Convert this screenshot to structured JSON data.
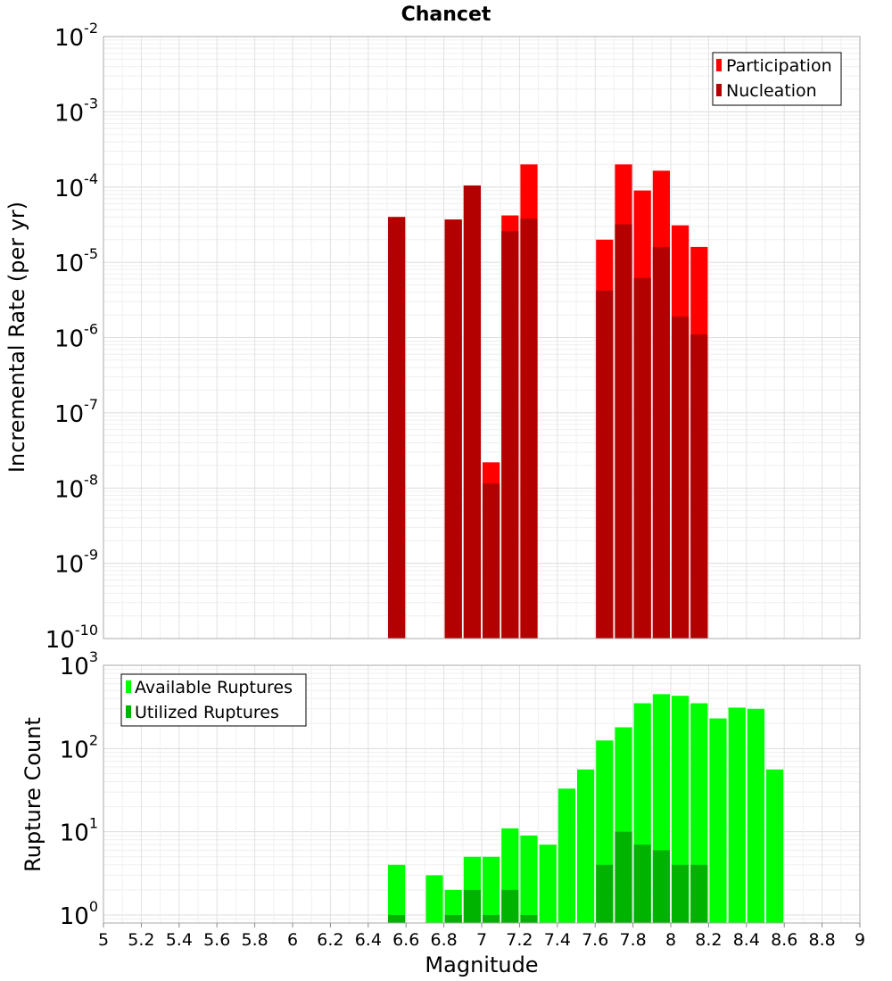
{
  "chart_data": [
    {
      "type": "bar",
      "title": "Chancet",
      "ylabel": "Incremental Rate (per yr)",
      "xlim": [
        5,
        9
      ],
      "ylim": [
        1e-10,
        0.01
      ],
      "yscale": "log",
      "grid": true,
      "legend_position": "top-right",
      "bin_width": 0.1,
      "y_tick_exponents": [
        "-10",
        "-9",
        "-8",
        "-7",
        "-6",
        "-5",
        "-4",
        "-3",
        "-2"
      ],
      "series": [
        {
          "name": "Participation",
          "color": "#ff0000",
          "x": [
            6.55,
            6.85,
            6.95,
            7.05,
            7.15,
            7.25,
            7.65,
            7.75,
            7.85,
            7.95,
            8.05,
            8.15
          ],
          "values": [
            4e-05,
            3.7e-05,
            0.000105,
            2.2e-08,
            4.2e-05,
            0.0002,
            2e-05,
            0.0002,
            9e-05,
            0.000165,
            3.1e-05,
            1.6e-05
          ]
        },
        {
          "name": "Nucleation",
          "color": "#b30000",
          "x": [
            6.55,
            6.85,
            6.95,
            7.05,
            7.15,
            7.25,
            7.65,
            7.75,
            7.85,
            7.95,
            8.05,
            8.15
          ],
          "values": [
            4e-05,
            3.7e-05,
            0.000105,
            1.15e-08,
            2.6e-05,
            3.8e-05,
            4.2e-06,
            3.2e-05,
            6.2e-06,
            1.6e-05,
            1.9e-06,
            1.1e-06
          ]
        }
      ]
    },
    {
      "type": "bar",
      "ylabel": "Rupture Count",
      "xlabel": "Magnitude",
      "xlim": [
        5,
        9
      ],
      "ylim": [
        0.8,
        1000
      ],
      "yscale": "log",
      "grid": true,
      "legend_position": "top-left",
      "bin_width": 0.1,
      "y_tick_exponents": [
        "0",
        "1",
        "2",
        "3"
      ],
      "x_ticks": [
        "5",
        "5.2",
        "5.4",
        "5.6",
        "5.8",
        "6",
        "6.2",
        "6.4",
        "6.6",
        "6.8",
        "7",
        "7.2",
        "7.4",
        "7.6",
        "7.8",
        "8",
        "8.2",
        "8.4",
        "8.6",
        "8.8",
        "9"
      ],
      "series": [
        {
          "name": "Available Ruptures",
          "color": "#00ff00",
          "x": [
            6.55,
            6.75,
            6.85,
            6.95,
            7.05,
            7.15,
            7.25,
            7.35,
            7.45,
            7.55,
            7.65,
            7.75,
            7.85,
            7.95,
            8.05,
            8.15,
            8.25,
            8.35,
            8.45,
            8.55
          ],
          "values": [
            4,
            3,
            2,
            5,
            5,
            11,
            9,
            7,
            33,
            56,
            125,
            180,
            350,
            450,
            430,
            350,
            230,
            310,
            300,
            56
          ]
        },
        {
          "name": "Utilized Ruptures",
          "color": "#00b300",
          "x": [
            6.55,
            6.85,
            6.95,
            7.05,
            7.15,
            7.25,
            7.65,
            7.75,
            7.85,
            7.95,
            8.05,
            8.15
          ],
          "values": [
            1,
            1,
            2,
            1,
            2,
            1,
            4,
            10,
            7,
            6,
            4,
            4
          ]
        }
      ]
    }
  ]
}
